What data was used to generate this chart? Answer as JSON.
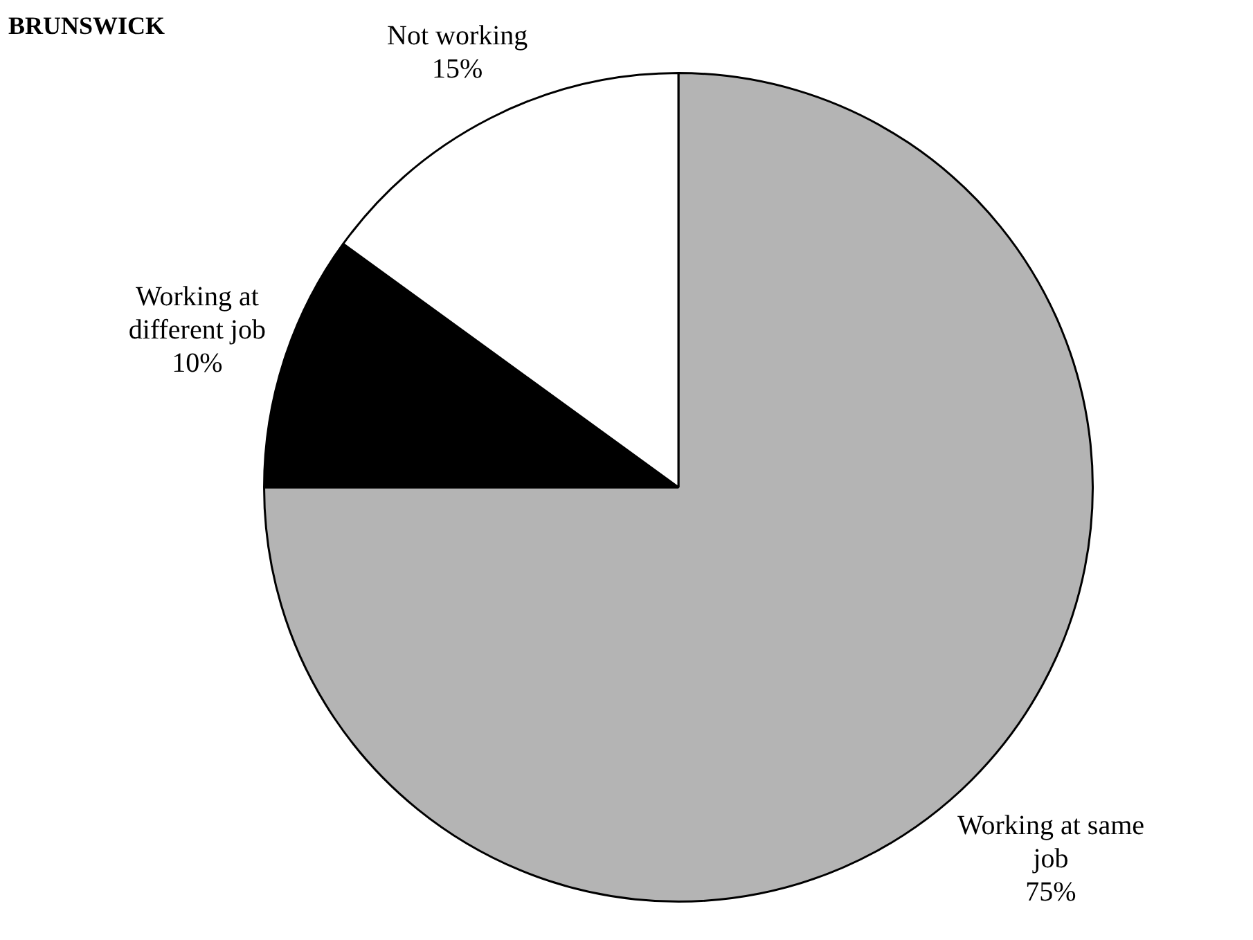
{
  "chart_data": {
    "type": "pie",
    "title": "BRUNSWICK",
    "categories": [
      "Working at same job",
      "Working at different job",
      "Not working"
    ],
    "values": [
      75,
      10,
      15
    ],
    "colors": [
      "#b4b4b4",
      "#000000",
      "#ffffff"
    ],
    "value_labels": [
      "75%",
      "10%",
      "15%"
    ],
    "legend": false
  }
}
